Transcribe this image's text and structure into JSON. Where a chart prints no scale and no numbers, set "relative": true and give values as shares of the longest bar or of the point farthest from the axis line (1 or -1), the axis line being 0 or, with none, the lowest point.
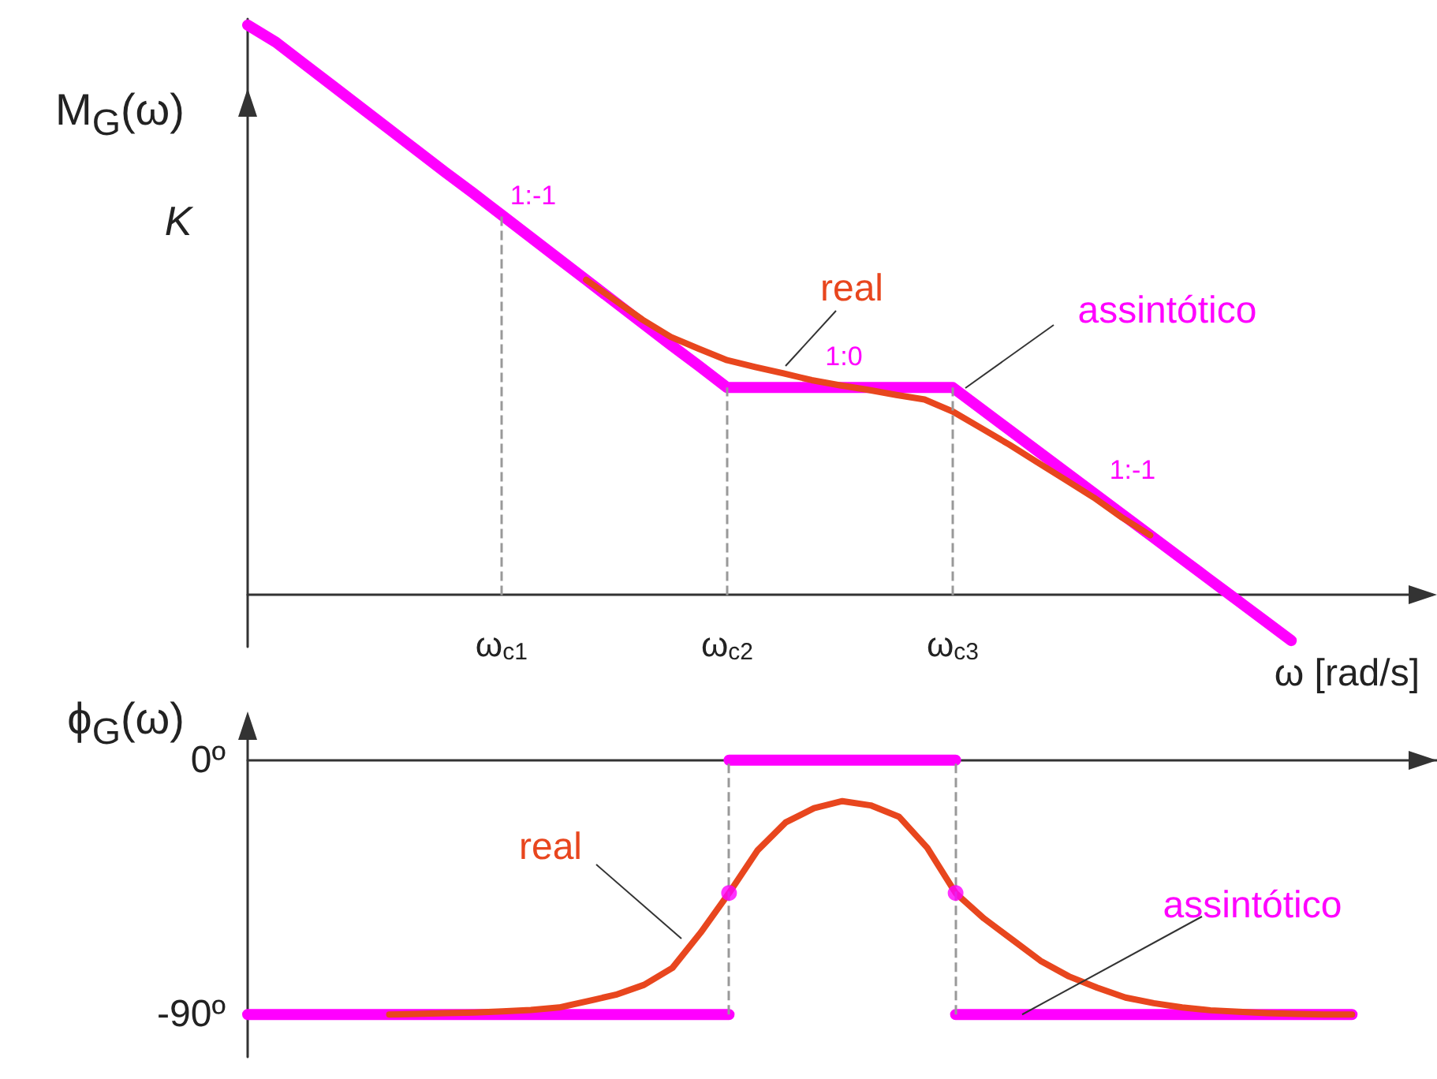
{
  "chart_data": [
    {
      "type": "line",
      "ylabel": "M$_{G}$(ω)",
      "xlabel": "ω [rad/s]",
      "relative": true,
      "categories": [
        null,
        null,
        null,
        null,
        null,
        null,
        null,
        null,
        null,
        "ω$_{c1}$",
        null,
        null,
        null,
        null,
        null,
        null,
        null,
        "ω$_{c2}$",
        null,
        null,
        null,
        null,
        null,
        null,
        null,
        "ω$_{c3}$",
        null,
        null,
        null,
        null,
        null,
        null,
        null,
        null,
        null,
        null,
        null,
        null,
        null,
        null,
        null,
        null,
        null
      ],
      "tick_labels": "x",
      "marker": "none",
      "series": [
        {
          "color": "#ff00ff",
          "values": [
            1,
            0.97,
            0.932,
            0.894,
            0.856,
            0.818,
            0.78,
            0.742,
            0.705,
            0.667,
            0.629,
            0.591,
            0.553,
            0.515,
            0.477,
            0.439,
            0.402,
            0.364,
            0.364,
            0.364,
            0.364,
            0.364,
            0.364,
            0.364,
            0.364,
            0.364,
            0.327,
            0.29,
            0.253,
            0.216,
            0.179,
            0.142,
            0.105,
            0.068,
            0.031,
            -0.006,
            -0.043,
            -0.08,
            null,
            null,
            null,
            null,
            null
          ]
        },
        {
          "color": "#e8461e",
          "values": [
            null,
            null,
            null,
            null,
            null,
            null,
            null,
            null,
            null,
            null,
            null,
            null,
            0.553,
            0.518,
            0.483,
            0.453,
            0.432,
            0.412,
            0.4,
            0.389,
            0.377,
            0.368,
            0.36,
            0.351,
            0.343,
            0.322,
            0.293,
            0.264,
            0.233,
            0.202,
            0.171,
            0.136,
            0.105,
            null,
            null,
            null,
            null,
            null,
            null,
            null,
            null,
            null,
            null
          ]
        }
      ],
      "ref_lines": [
        {
          "axis": "x",
          "value": "ω$_{c1}$",
          "color": "#999999",
          "line_style": "dashed"
        },
        {
          "axis": "x",
          "value": "ω$_{c2}$",
          "color": "#999999",
          "line_style": "dashed"
        },
        {
          "axis": "x",
          "value": "ω$_{c3}$",
          "color": "#999999",
          "line_style": "dashed"
        }
      ],
      "annotations": [
        "K",
        "1:-1",
        "1:0",
        "1:-1",
        "real",
        "assintótico"
      ]
    },
    {
      "type": "line",
      "ylabel": "ϕ$_{G}$(ω)",
      "categories": [
        null,
        null,
        null,
        null,
        null,
        null,
        null,
        null,
        null,
        "ω$_{c1}$",
        null,
        null,
        null,
        null,
        null,
        null,
        null,
        "ω$_{c2}$",
        null,
        null,
        null,
        null,
        null,
        null,
        null,
        "ω$_{c3}$",
        null,
        null,
        null,
        null,
        null,
        null,
        null,
        null,
        null,
        null,
        null,
        null,
        null,
        null,
        null,
        null,
        null
      ],
      "ylim": [
        -105,
        15
      ],
      "yticks": [
        {
          "value": 0,
          "label": "0º"
        },
        {
          "value": -90,
          "label": "-90º"
        }
      ],
      "tick_labels": "y",
      "marker": "none",
      "series": [
        {
          "color": "#ff00ff",
          "values": [
            -90,
            -90,
            -90,
            -90,
            -90,
            -90,
            -90,
            -90,
            -90,
            -90,
            -90,
            -90,
            -90,
            -90,
            -90,
            -90,
            -90,
            -90,
            null,
            null,
            null,
            null,
            null,
            null,
            null,
            -90,
            -90,
            -90,
            -90,
            -90,
            -90,
            -90,
            -90,
            -90,
            -90,
            -90,
            -90,
            -90,
            -90,
            -90,
            null,
            null,
            null
          ]
        },
        {
          "color": "#ff00ff",
          "values": [
            null,
            null,
            null,
            null,
            null,
            null,
            null,
            null,
            null,
            null,
            null,
            null,
            null,
            null,
            null,
            null,
            null,
            0,
            0,
            0,
            0,
            0,
            0,
            0,
            0,
            0,
            null,
            null,
            null,
            null,
            null,
            null,
            null,
            null,
            null,
            null,
            null,
            null,
            null,
            null,
            null,
            null,
            null
          ]
        },
        {
          "color": "#e8461e",
          "values": [
            null,
            null,
            null,
            null,
            null,
            -90,
            -89.8,
            -89.5,
            -89.3,
            -88.9,
            -88.4,
            -87.5,
            -85.3,
            -83,
            -79.5,
            -73.5,
            -61,
            -47,
            -32,
            -22,
            -17,
            -14.5,
            -16,
            -20,
            -31,
            -47,
            -56,
            -63.5,
            -71,
            -76.5,
            -80.5,
            -84,
            -86,
            -87.5,
            -88.5,
            -89,
            -89.5,
            -89.8,
            -90,
            -90,
            null,
            null,
            null
          ]
        },
        {
          "type": "scatter",
          "marker": "circle",
          "color": "#ff00ff",
          "x": [
            "ω$_{c2}$",
            "ω$_{c3}$"
          ],
          "values": [
            -47,
            -47
          ]
        }
      ],
      "ref_lines": [
        {
          "axis": "x",
          "value": "ω$_{c2}$",
          "color": "#999999",
          "line_style": "dashed"
        },
        {
          "axis": "x",
          "value": "ω$_{c3}$",
          "color": "#999999",
          "line_style": "dashed"
        }
      ],
      "annotations": [
        "real",
        {
          "text": "assintótico",
          "y": -90
        }
      ]
    }
  ]
}
